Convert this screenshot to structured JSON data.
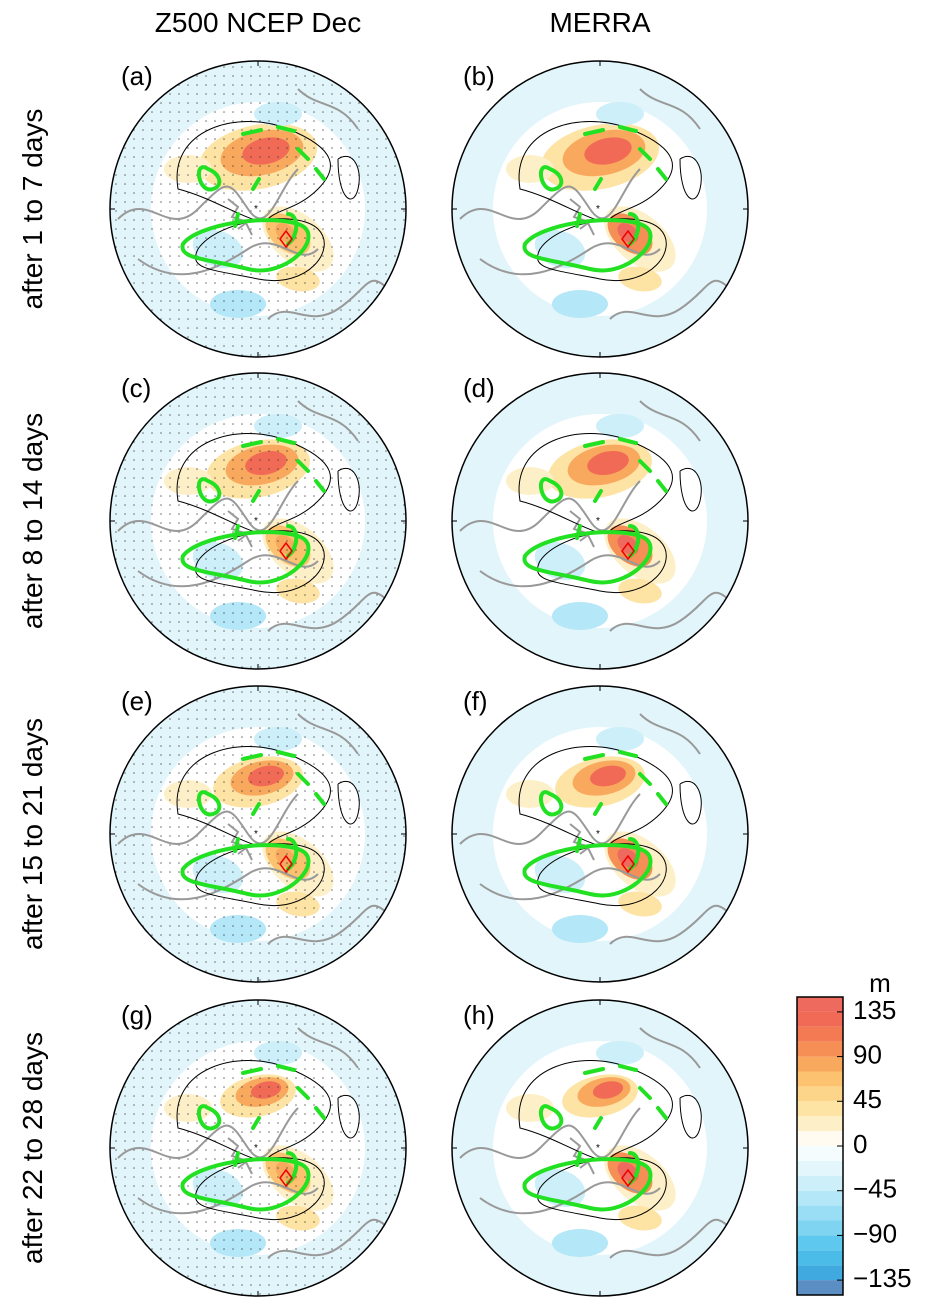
{
  "columns": [
    "Z500 NCEP Dec",
    "MERRA"
  ],
  "rows": [
    "after 1 to 7 days",
    "after 8 to 14 days",
    "after 15 to 21 days",
    "after 22 to 28 days"
  ],
  "panels": [
    "(a)",
    "(b)",
    "(c)",
    "(d)",
    "(e)",
    "(f)",
    "(g)",
    "(h)"
  ],
  "colorbar": {
    "unit": "m",
    "lim": [
      -150,
      150
    ],
    "ticks": [
      135,
      90,
      45,
      0,
      {
        "value": -45,
        "label": "−45"
      },
      {
        "value": -90,
        "label": "−90"
      },
      {
        "value": -135,
        "label": "−135"
      }
    ],
    "colors": [
      "#5b8fc4",
      "#3fa9e0",
      "#4bbbe8",
      "#5ec8ee",
      "#7fd4f2",
      "#9adef5",
      "#b4e7f7",
      "#cdeff9",
      "#e2f6fb",
      "#f4fcfd",
      "#fffbf0",
      "#fdf0c8",
      "#fde3a4",
      "#fdd58a",
      "#fcc270",
      "#f9a95e",
      "#f68f55",
      "#f37a52",
      "#f06a55",
      "#ee6a5e"
    ]
  }
}
